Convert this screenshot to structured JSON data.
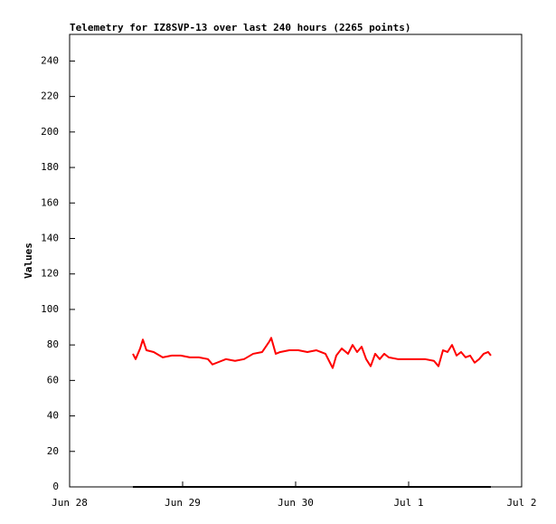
{
  "chart_data": {
    "type": "line",
    "title": "Telemetry for IZ8SVP-13 over last 240 hours (2265 points)",
    "y_label": "Values",
    "xlim": [
      0,
      4
    ],
    "xticks": [
      {
        "value": 0,
        "label": "Jun 28"
      },
      {
        "value": 1,
        "label": "Jun 29"
      },
      {
        "value": 2,
        "label": "Jun 30"
      },
      {
        "value": 3,
        "label": "Jul 1"
      },
      {
        "value": 4,
        "label": "Jul 2"
      }
    ],
    "ylim": [
      0,
      255
    ],
    "yticks": [
      0,
      20,
      40,
      60,
      80,
      100,
      120,
      140,
      160,
      180,
      200,
      220,
      240
    ],
    "series": [
      {
        "color": "#ff0000",
        "x": [
          0.56,
          0.584,
          0.624,
          0.648,
          0.68,
          0.744,
          0.824,
          0.904,
          0.984,
          1.064,
          1.144,
          1.224,
          1.264,
          1.304,
          1.384,
          1.464,
          1.544,
          1.624,
          1.704,
          1.768,
          1.784,
          1.824,
          1.864,
          1.944,
          2.024,
          2.104,
          2.184,
          2.264,
          2.304,
          2.328,
          2.36,
          2.408,
          2.464,
          2.504,
          2.544,
          2.584,
          2.624,
          2.664,
          2.704,
          2.744,
          2.784,
          2.824,
          2.904,
          2.984,
          3.064,
          3.144,
          3.224,
          3.264,
          3.304,
          3.344,
          3.384,
          3.424,
          3.464,
          3.504,
          3.544,
          3.584,
          3.624,
          3.664,
          3.704,
          3.728
        ],
        "values": [
          75,
          72,
          78,
          83,
          77,
          76,
          73,
          74,
          74,
          73,
          73,
          72,
          69,
          70,
          72,
          71,
          72,
          75,
          76,
          82,
          84,
          75,
          76,
          77,
          77,
          76,
          77,
          75,
          70,
          67,
          74,
          78,
          75,
          80,
          76,
          79,
          72,
          68,
          75,
          72,
          75,
          73,
          72,
          72,
          72,
          72,
          71,
          68,
          77,
          76,
          80,
          74,
          76,
          73,
          74,
          70,
          72,
          75,
          76,
          74
        ]
      },
      {
        "color": "#000000",
        "x": [
          0.56,
          3.728
        ],
        "values": [
          0,
          0
        ]
      }
    ]
  }
}
